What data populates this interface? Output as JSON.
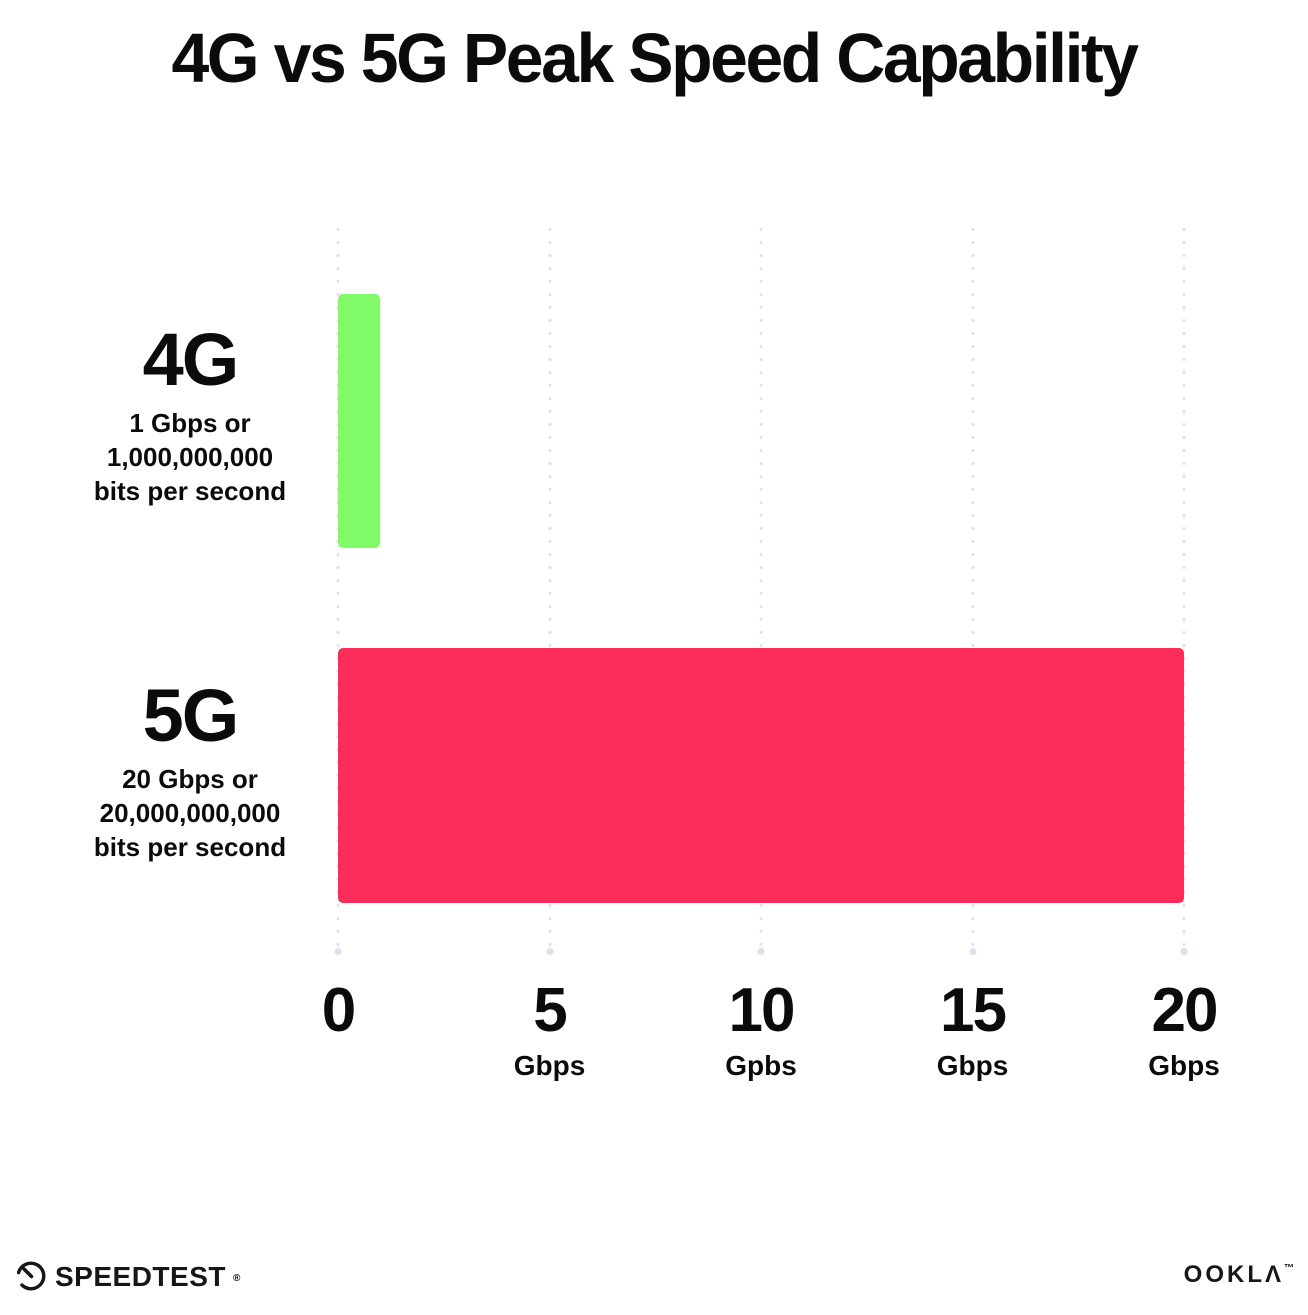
{
  "title": "4G vs 5G Peak Speed Capability",
  "chart_data": {
    "type": "bar",
    "orientation": "horizontal",
    "title": "4G vs 5G Peak Speed Capability",
    "categories": [
      "4G",
      "5G"
    ],
    "values": [
      1,
      20
    ],
    "value_unit": "Gbps",
    "bar_colors": [
      "#80FA68",
      "#FD2D5B"
    ],
    "category_sublabels": [
      [
        "1 Gbps or",
        "1,000,000,000",
        "bits per second"
      ],
      [
        "20 Gbps or",
        "20,000,000,000",
        "bits per second"
      ]
    ],
    "xlim": [
      0,
      20
    ],
    "x_ticks": [
      {
        "value": 0,
        "label": "0",
        "unit": ""
      },
      {
        "value": 5,
        "label": "5",
        "unit": "Gbps"
      },
      {
        "value": 10,
        "label": "10",
        "unit": "Gpbs"
      },
      {
        "value": 15,
        "label": "15",
        "unit": "Gbps"
      },
      {
        "value": 20,
        "label": "20",
        "unit": "Gbps"
      }
    ],
    "grid": "vertical-dotted",
    "gridline_color": "#E2E2EE",
    "background": "#FFFFFF",
    "text_color": "#0B0B0B",
    "legend": "none"
  },
  "footer": {
    "speedtest_label": "SPEEDTEST",
    "speedtest_mark": "®",
    "ookla_label": "OOKLΛ",
    "ookla_mark": "™"
  }
}
